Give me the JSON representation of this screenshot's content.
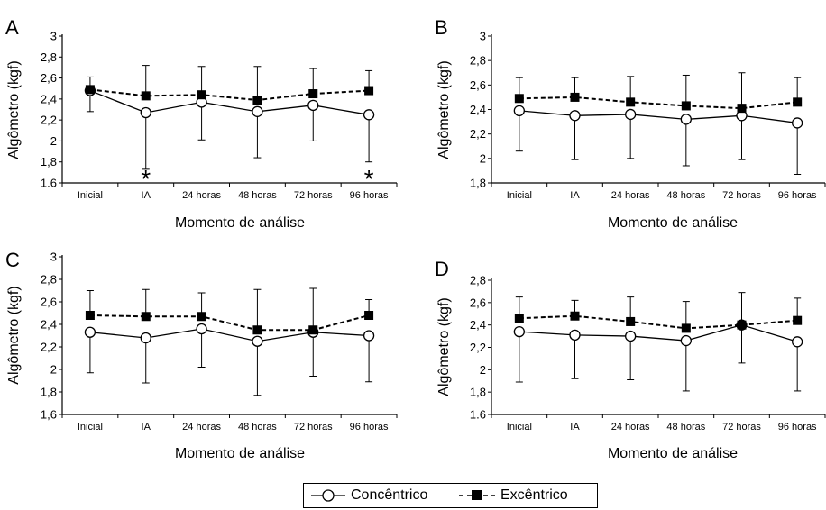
{
  "categories": [
    "Inicial",
    "IA",
    "24 horas",
    "48 horas",
    "72 horas",
    "96 horas"
  ],
  "legend": {
    "concentric_label": "Concêntrico",
    "eccentric_label": "Excêntrico"
  },
  "colors": {
    "axis": "#000000",
    "line": "#000000",
    "marker_fill_open": "#ffffff",
    "marker_fill_solid": "#000000"
  },
  "chart_data": [
    {
      "type": "line",
      "panel": "A",
      "title": "",
      "xlabel": "Momento de análise",
      "ylabel": "Algômetro (kgf)",
      "ylim": [
        1.6,
        3.0
      ],
      "ytick_labels": [
        "1.6",
        "1,8",
        "2",
        "2,2",
        "2,4",
        "2,6",
        "2,8",
        "3"
      ],
      "ytick_values": [
        1.6,
        1.8,
        2.0,
        2.2,
        2.4,
        2.6,
        2.8,
        3.0
      ],
      "categories": [
        "Inicial",
        "IA",
        "24 horas",
        "48 horas",
        "72 horas",
        "96 horas"
      ],
      "annotations": [
        {
          "category": "IA",
          "text": "*"
        },
        {
          "category": "96 horas",
          "text": "*"
        }
      ],
      "series": [
        {
          "name": "Concêntrico",
          "marker": "open-circle",
          "style": "solid",
          "values": [
            2.48,
            2.27,
            2.37,
            2.28,
            2.34,
            2.25
          ],
          "error_upper": [
            2.48,
            2.27,
            2.37,
            2.28,
            2.34,
            2.25
          ],
          "error_lower": [
            2.28,
            1.73,
            2.01,
            1.84,
            2.0,
            1.8
          ]
        },
        {
          "name": "Excêntrico",
          "marker": "filled-square",
          "style": "dashed",
          "values": [
            2.49,
            2.43,
            2.44,
            2.39,
            2.45,
            2.48
          ],
          "error_upper": [
            2.61,
            2.72,
            2.71,
            2.71,
            2.69,
            2.67
          ],
          "error_lower": [
            2.49,
            2.43,
            2.44,
            2.39,
            2.45,
            2.48
          ]
        }
      ]
    },
    {
      "type": "line",
      "panel": "B",
      "title": "",
      "xlabel": "Momento de análise",
      "ylabel": "Algômetro (kgf)",
      "ylim": [
        1.8,
        3.0
      ],
      "ytick_labels": [
        "1,8",
        "2",
        "2,2",
        "2,4",
        "2,6",
        "2,8",
        "3"
      ],
      "ytick_values": [
        1.8,
        2.0,
        2.2,
        2.4,
        2.6,
        2.8,
        3.0
      ],
      "categories": [
        "Inicial",
        "IA",
        "24 horas",
        "48 horas",
        "72 horas",
        "96 horas"
      ],
      "annotations": [],
      "series": [
        {
          "name": "Concêntrico",
          "marker": "open-circle",
          "style": "solid",
          "values": [
            2.39,
            2.35,
            2.36,
            2.32,
            2.35,
            2.29
          ],
          "error_upper": [
            2.39,
            2.35,
            2.36,
            2.32,
            2.35,
            2.29
          ],
          "error_lower": [
            2.06,
            1.99,
            2.0,
            1.94,
            1.99,
            1.87
          ]
        },
        {
          "name": "Excêntrico",
          "marker": "filled-square",
          "style": "dashed",
          "values": [
            2.49,
            2.5,
            2.46,
            2.43,
            2.41,
            2.46
          ],
          "error_upper": [
            2.66,
            2.66,
            2.67,
            2.68,
            2.7,
            2.66
          ],
          "error_lower": [
            2.49,
            2.5,
            2.46,
            2.43,
            2.41,
            2.46
          ]
        }
      ]
    },
    {
      "type": "line",
      "panel": "C",
      "title": "",
      "xlabel": "Momento de análise",
      "ylabel": "Algômetro (kgf)",
      "ylim": [
        1.6,
        3.0
      ],
      "ytick_labels": [
        "1,6",
        "1,8",
        "2",
        "2,2",
        "2,4",
        "2,6",
        "2,8",
        "3"
      ],
      "ytick_values": [
        1.6,
        1.8,
        2.0,
        2.2,
        2.4,
        2.6,
        2.8,
        3.0
      ],
      "categories": [
        "Inicial",
        "IA",
        "24 horas",
        "48 horas",
        "72 horas",
        "96 horas"
      ],
      "annotations": [],
      "series": [
        {
          "name": "Concêntrico",
          "marker": "open-circle",
          "style": "solid",
          "values": [
            2.33,
            2.28,
            2.36,
            2.25,
            2.33,
            2.3
          ],
          "error_upper": [
            2.33,
            2.28,
            2.36,
            2.25,
            2.33,
            2.3
          ],
          "error_lower": [
            1.97,
            1.88,
            2.02,
            1.77,
            1.94,
            1.89
          ]
        },
        {
          "name": "Excêntrico",
          "marker": "filled-square",
          "style": "dashed",
          "values": [
            2.48,
            2.47,
            2.47,
            2.35,
            2.35,
            2.48
          ],
          "error_upper": [
            2.7,
            2.71,
            2.68,
            2.71,
            2.72,
            2.62
          ],
          "error_lower": [
            2.48,
            2.47,
            2.47,
            2.35,
            2.35,
            2.48
          ]
        }
      ]
    },
    {
      "type": "line",
      "panel": "D",
      "title": "",
      "xlabel": "Momento de análise",
      "ylabel": "Algômetro (kgf)",
      "ylim": [
        1.6,
        2.8
      ],
      "ytick_labels": [
        "1.6",
        "1,8",
        "2",
        "2,2",
        "2,4",
        "2,6",
        "2,8"
      ],
      "ytick_values": [
        1.6,
        1.8,
        2.0,
        2.2,
        2.4,
        2.6,
        2.8
      ],
      "categories": [
        "Inicial",
        "IA",
        "24 horas",
        "48 horas",
        "72 horas",
        "96 horas"
      ],
      "annotations": [],
      "series": [
        {
          "name": "Concêntrico",
          "marker": "open-circle",
          "style": "solid",
          "values": [
            2.34,
            2.31,
            2.3,
            2.26,
            2.4,
            2.25
          ],
          "error_upper": [
            2.34,
            2.31,
            2.3,
            2.26,
            2.4,
            2.25
          ],
          "error_lower": [
            1.89,
            1.92,
            1.91,
            1.81,
            2.06,
            1.81
          ]
        },
        {
          "name": "Excêntrico",
          "marker": "filled-square",
          "style": "dashed",
          "values": [
            2.46,
            2.48,
            2.43,
            2.37,
            2.4,
            2.44
          ],
          "error_upper": [
            2.65,
            2.62,
            2.65,
            2.61,
            2.69,
            2.64
          ],
          "error_lower": [
            2.46,
            2.48,
            2.43,
            2.37,
            2.4,
            2.44
          ]
        }
      ]
    }
  ]
}
